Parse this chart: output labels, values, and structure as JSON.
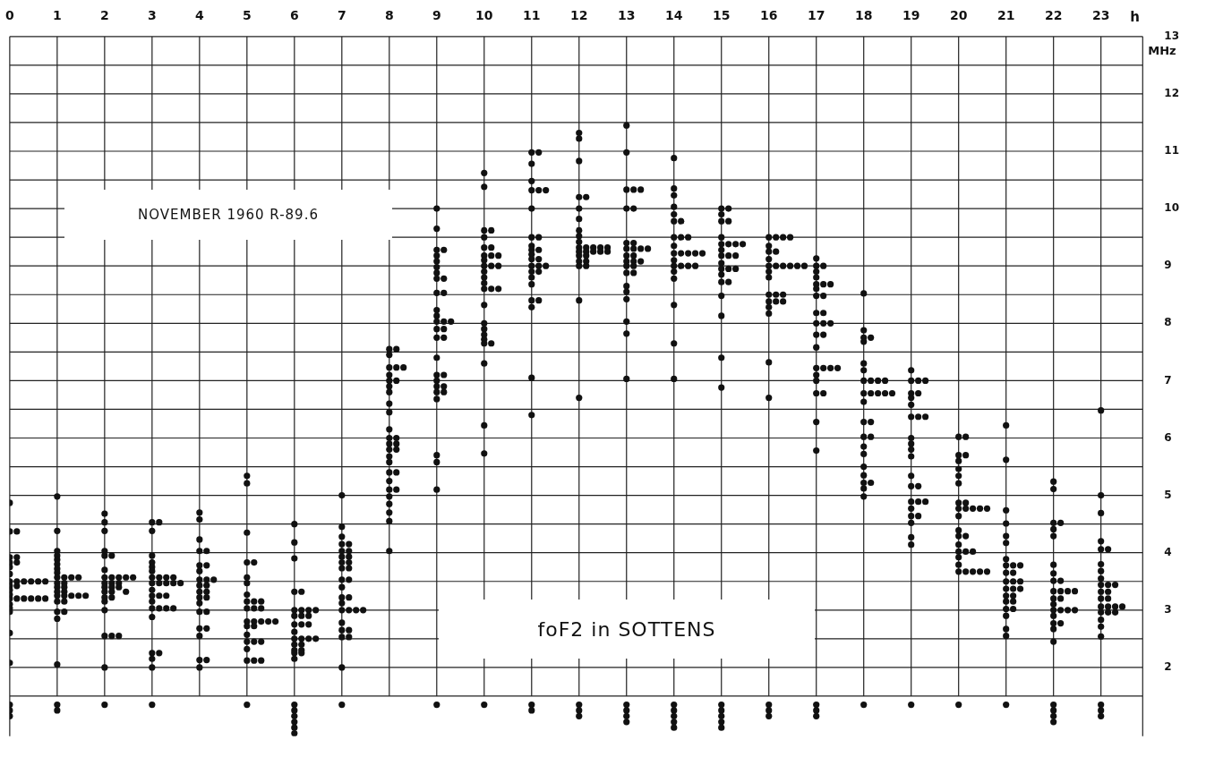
{
  "chart_data": {
    "type": "scatter",
    "title": "foF2 in SOTTENS",
    "subtitle": "NOVEMBER 1960 R-89.6",
    "xlabel": "h",
    "ylabel": "MHz",
    "marker": "circle",
    "grid": true,
    "legend": false,
    "xlim": [
      0,
      23.88
    ],
    "xticks": [
      0,
      1,
      2,
      3,
      4,
      5,
      6,
      7,
      8,
      9,
      10,
      11,
      12,
      13,
      14,
      15,
      16,
      17,
      18,
      19,
      20,
      21,
      22,
      23
    ],
    "ylim": [
      0.8,
      13
    ],
    "yticks": [
      {
        "value": 1.5,
        "label": null
      },
      2,
      {
        "value": 2.5,
        "label": null
      },
      3,
      {
        "value": 3.5,
        "label": null
      },
      4,
      {
        "value": 4.5,
        "label": null
      },
      5,
      {
        "value": 5.5,
        "label": null
      },
      6,
      {
        "value": 6.5,
        "label": null
      },
      7,
      {
        "value": 7.5,
        "label": null
      },
      8,
      {
        "value": 8.5,
        "label": null
      },
      9,
      {
        "value": 9.5,
        "label": null
      },
      10,
      {
        "value": 10.5,
        "label": null
      },
      11,
      {
        "value": 11.5,
        "label": null
      },
      12,
      {
        "value": 12.5,
        "label": null
      },
      13
    ],
    "series": [
      {
        "color": "#111111",
        "x": [
          0,
          0,
          0.15,
          0,
          0.15,
          0,
          0.15,
          0,
          0,
          0,
          0.15,
          0.3,
          0.45,
          0.6,
          0.75,
          0,
          0.15,
          0,
          0,
          0,
          0.15,
          0.3,
          0.45,
          0.6,
          0.75,
          0,
          0,
          0,
          0,
          0
        ],
        "values": [
          4.87,
          4.37,
          4.37,
          3.92,
          3.92,
          3.83,
          3.83,
          3.75,
          3.63,
          3.5,
          3.5,
          3.5,
          3.5,
          3.5,
          3.5,
          3.42,
          3.42,
          3.35,
          3.27,
          3.2,
          3.2,
          3.2,
          3.2,
          3.2,
          3.2,
          3.1,
          3.03,
          2.97,
          2.6,
          2.08
        ]
      },
      {
        "color": "#111111",
        "x": [
          1,
          1,
          1,
          1,
          1,
          1,
          1,
          1,
          1,
          1.15,
          1.3,
          1.45,
          1,
          1.15,
          1,
          1.15,
          1,
          1.15,
          1,
          1.15,
          1.3,
          1.45,
          1.6,
          1,
          1.15,
          1,
          1.15,
          1,
          1
        ],
        "values": [
          4.98,
          4.38,
          4.03,
          3.95,
          3.88,
          3.8,
          3.72,
          3.65,
          3.57,
          3.57,
          3.57,
          3.57,
          3.47,
          3.47,
          3.4,
          3.4,
          3.32,
          3.32,
          3.25,
          3.25,
          3.25,
          3.25,
          3.25,
          3.15,
          3.15,
          2.97,
          2.97,
          2.85,
          2.05
        ]
      },
      {
        "color": "#111111",
        "x": [
          2,
          2,
          2,
          2,
          2,
          2.15,
          2,
          2,
          2.15,
          2.3,
          2.45,
          2.6,
          2,
          2.15,
          2.3,
          2,
          2.15,
          2.3,
          2,
          2.15,
          2.45,
          2,
          2.15,
          2,
          2,
          2,
          2.15,
          2.3,
          2
        ],
        "values": [
          4.68,
          4.53,
          4.38,
          4.03,
          3.95,
          3.95,
          3.7,
          3.57,
          3.57,
          3.57,
          3.57,
          3.57,
          3.47,
          3.47,
          3.47,
          3.4,
          3.4,
          3.4,
          3.32,
          3.32,
          3.32,
          3.22,
          3.22,
          3.15,
          3.0,
          2.55,
          2.55,
          2.55,
          2.0
        ]
      },
      {
        "color": "#111111",
        "x": [
          3,
          3.15,
          3,
          3,
          3,
          3,
          3,
          3,
          3.15,
          3.3,
          3.45,
          3,
          3.15,
          3.3,
          3.45,
          3.6,
          3,
          3,
          3.15,
          3.3,
          3,
          3,
          3.15,
          3.3,
          3.45,
          3,
          3,
          3.15,
          3,
          3
        ],
        "values": [
          4.53,
          4.53,
          4.38,
          3.95,
          3.83,
          3.75,
          3.68,
          3.57,
          3.57,
          3.57,
          3.57,
          3.47,
          3.47,
          3.47,
          3.47,
          3.47,
          3.35,
          3.25,
          3.25,
          3.25,
          3.15,
          3.03,
          3.03,
          3.03,
          3.03,
          2.88,
          2.25,
          2.25,
          2.15,
          2.0
        ]
      },
      {
        "color": "#111111",
        "x": [
          4,
          4,
          4,
          4,
          4.15,
          4,
          4.15,
          4,
          4,
          4.15,
          4.3,
          4,
          4.15,
          4,
          4.15,
          4,
          4.15,
          4,
          4,
          4.15,
          4,
          4.15,
          4,
          4,
          4.15,
          4
        ],
        "values": [
          4.7,
          4.58,
          4.23,
          4.03,
          4.03,
          3.78,
          3.78,
          3.68,
          3.53,
          3.53,
          3.53,
          3.43,
          3.43,
          3.32,
          3.32,
          3.22,
          3.22,
          3.12,
          2.97,
          2.97,
          2.68,
          2.68,
          2.55,
          2.13,
          2.13,
          2.0
        ]
      },
      {
        "color": "#111111",
        "x": [
          5,
          5,
          5,
          5,
          5.15,
          5,
          5,
          5,
          5,
          5.15,
          5.3,
          5,
          5.15,
          5.3,
          5,
          5.15,
          5.3,
          5.45,
          5.6,
          5,
          5.15,
          5,
          5,
          5.15,
          5.3,
          5,
          5,
          5.15,
          5.3
        ],
        "values": [
          5.34,
          5.21,
          4.35,
          3.83,
          3.83,
          3.57,
          3.47,
          3.27,
          3.15,
          3.15,
          3.15,
          3.03,
          3.03,
          3.03,
          2.8,
          2.8,
          2.8,
          2.8,
          2.8,
          2.72,
          2.72,
          2.57,
          2.45,
          2.45,
          2.45,
          2.32,
          2.12,
          2.12,
          2.12
        ]
      },
      {
        "color": "#111111",
        "x": [
          6,
          6,
          6,
          6,
          6.15,
          6,
          6.15,
          6.3,
          6.45,
          6,
          6.15,
          6.3,
          6,
          6.15,
          6.3,
          6,
          6,
          6.15,
          6.3,
          6.45,
          6,
          6.15,
          6,
          6.15,
          6,
          6.15,
          6
        ],
        "values": [
          4.5,
          4.18,
          3.9,
          3.32,
          3.32,
          3.0,
          3.0,
          3.0,
          3.0,
          2.9,
          2.9,
          2.9,
          2.75,
          2.75,
          2.75,
          2.62,
          2.5,
          2.5,
          2.5,
          2.5,
          2.4,
          2.4,
          2.3,
          2.3,
          2.25,
          2.25,
          2.15
        ]
      },
      {
        "color": "#111111",
        "x": [
          7,
          7,
          7,
          7,
          7.15,
          7,
          7.15,
          7,
          7.15,
          7,
          7.15,
          7,
          7.15,
          7,
          7.15,
          7,
          7,
          7.15,
          7,
          7,
          7.15,
          7.3,
          7.45,
          7,
          7,
          7.15,
          7,
          7.15,
          7
        ],
        "values": [
          5.0,
          4.45,
          4.28,
          4.15,
          4.15,
          4.03,
          4.03,
          3.93,
          3.93,
          3.83,
          3.83,
          3.73,
          3.73,
          3.53,
          3.53,
          3.4,
          3.22,
          3.22,
          3.12,
          3.0,
          3.0,
          3.0,
          3.0,
          2.78,
          2.65,
          2.65,
          2.53,
          2.53,
          2.0
        ]
      },
      {
        "color": "#111111",
        "x": [
          8,
          8.15,
          8,
          8,
          8.15,
          8.3,
          8,
          8,
          8.15,
          8,
          8,
          8,
          8,
          8,
          8,
          8.15,
          8,
          8.15,
          8,
          8.15,
          8,
          8,
          8,
          8.15,
          8,
          8,
          8.15,
          8,
          8,
          8,
          8,
          8
        ],
        "values": [
          7.55,
          7.55,
          7.45,
          7.23,
          7.23,
          7.23,
          7.1,
          7.0,
          7.0,
          6.9,
          6.8,
          6.6,
          6.45,
          6.15,
          6.0,
          6.0,
          5.9,
          5.9,
          5.8,
          5.8,
          5.68,
          5.58,
          5.4,
          5.4,
          5.25,
          5.1,
          5.1,
          4.98,
          4.85,
          4.7,
          4.55,
          4.03
        ]
      },
      {
        "color": "#111111",
        "x": [
          9,
          9,
          9,
          9.15,
          9,
          9,
          9,
          9,
          9,
          9.15,
          9,
          9.15,
          9,
          9,
          9,
          9.15,
          9.3,
          9,
          9.15,
          9,
          9.15,
          9,
          9,
          9.15,
          9,
          9,
          9.15,
          9,
          9.15,
          9,
          9,
          9,
          9
        ],
        "values": [
          10.0,
          9.65,
          9.28,
          9.28,
          9.18,
          9.08,
          8.98,
          8.88,
          8.78,
          8.78,
          8.53,
          8.53,
          8.23,
          8.13,
          8.03,
          8.03,
          8.03,
          7.9,
          7.9,
          7.75,
          7.75,
          7.4,
          7.1,
          7.1,
          7.0,
          6.9,
          6.9,
          6.8,
          6.8,
          6.68,
          5.7,
          5.58,
          5.1
        ]
      },
      {
        "color": "#111111",
        "x": [
          10,
          10,
          10,
          10.15,
          10,
          10,
          10.15,
          10,
          10.15,
          10.3,
          10,
          10,
          10.15,
          10.3,
          10,
          10,
          10,
          10,
          10.15,
          10.3,
          10,
          10,
          10,
          10,
          10,
          10,
          10.15,
          10,
          10,
          10
        ],
        "values": [
          10.62,
          10.38,
          9.62,
          9.62,
          9.5,
          9.32,
          9.32,
          9.18,
          9.18,
          9.18,
          9.1,
          9.0,
          9.0,
          9.0,
          8.9,
          8.8,
          8.7,
          8.6,
          8.6,
          8.6,
          8.32,
          8.0,
          7.9,
          7.8,
          7.72,
          7.65,
          7.65,
          7.3,
          6.22,
          5.73
        ]
      },
      {
        "color": "#111111",
        "x": [
          11,
          11.15,
          11,
          11,
          11,
          11.15,
          11.3,
          11,
          11,
          11.15,
          11,
          11,
          11.15,
          11,
          11,
          11.15,
          11,
          11.15,
          11.3,
          11,
          11.15,
          11,
          11,
          11,
          11.15,
          11,
          11,
          11
        ],
        "values": [
          10.98,
          10.98,
          10.78,
          10.48,
          10.32,
          10.32,
          10.32,
          10.0,
          9.5,
          9.5,
          9.35,
          9.28,
          9.28,
          9.2,
          9.12,
          9.12,
          9.0,
          9.0,
          9.0,
          8.9,
          8.9,
          8.8,
          8.68,
          8.4,
          8.4,
          8.28,
          7.05,
          6.4
        ]
      },
      {
        "color": "#111111",
        "x": [
          12,
          12,
          12,
          12,
          12.15,
          12,
          12,
          12,
          12,
          12,
          12,
          12.15,
          12.3,
          12.45,
          12.6,
          12,
          12.15,
          12.3,
          12.45,
          12.6,
          12,
          12.15,
          12,
          12.15,
          12,
          12.15,
          12,
          12
        ],
        "values": [
          11.32,
          11.22,
          10.83,
          10.2,
          10.2,
          10.0,
          9.82,
          9.62,
          9.52,
          9.42,
          9.32,
          9.32,
          9.32,
          9.32,
          9.32,
          9.25,
          9.25,
          9.25,
          9.25,
          9.25,
          9.18,
          9.18,
          9.08,
          9.08,
          9.0,
          9.0,
          8.4,
          6.7
        ]
      },
      {
        "color": "#111111",
        "x": [
          13,
          13,
          13,
          13.15,
          13.3,
          13,
          13.15,
          13,
          13.15,
          13,
          13.15,
          13.3,
          13.45,
          13,
          13.15,
          13,
          13.15,
          13.3,
          13,
          13.15,
          13,
          13.15,
          13,
          13,
          13,
          13,
          13,
          13
        ],
        "values": [
          11.45,
          10.98,
          10.33,
          10.33,
          10.33,
          10.0,
          10.0,
          9.4,
          9.4,
          9.3,
          9.3,
          9.3,
          9.3,
          9.18,
          9.18,
          9.08,
          9.08,
          9.08,
          9.0,
          9.0,
          8.88,
          8.88,
          8.65,
          8.55,
          8.42,
          8.03,
          7.82,
          7.03
        ]
      },
      {
        "color": "#111111",
        "x": [
          14,
          14,
          14,
          14,
          14,
          14,
          14.15,
          14,
          14.15,
          14.3,
          14,
          14,
          14.15,
          14.3,
          14.45,
          14.6,
          14,
          14,
          14.15,
          14.3,
          14.45,
          14,
          14,
          14,
          14,
          14
        ],
        "values": [
          10.88,
          10.35,
          10.23,
          10.03,
          9.9,
          9.78,
          9.78,
          9.5,
          9.5,
          9.5,
          9.35,
          9.22,
          9.22,
          9.22,
          9.22,
          9.22,
          9.1,
          9.0,
          9.0,
          9.0,
          9.0,
          8.9,
          8.78,
          8.32,
          7.65,
          7.03
        ]
      },
      {
        "color": "#111111",
        "x": [
          15,
          15.15,
          15,
          15,
          15.15,
          15,
          15,
          15.15,
          15.3,
          15.45,
          15,
          15,
          15.15,
          15.3,
          15,
          15,
          15.15,
          15.3,
          15,
          15,
          15.15,
          15,
          15,
          15,
          15
        ],
        "values": [
          10.0,
          10.0,
          9.9,
          9.78,
          9.78,
          9.5,
          9.38,
          9.38,
          9.38,
          9.38,
          9.28,
          9.18,
          9.18,
          9.18,
          9.05,
          8.95,
          8.95,
          8.95,
          8.85,
          8.72,
          8.72,
          8.48,
          8.13,
          7.4,
          6.88
        ]
      },
      {
        "color": "#111111",
        "x": [
          16,
          16.15,
          16.3,
          16.45,
          16,
          16,
          16.15,
          16,
          16,
          16.15,
          16.3,
          16.45,
          16.6,
          16.75,
          16,
          16,
          16,
          16.15,
          16.3,
          16,
          16.15,
          16.3,
          16,
          16,
          16,
          16
        ],
        "values": [
          9.5,
          9.5,
          9.5,
          9.5,
          9.35,
          9.25,
          9.25,
          9.12,
          9.0,
          9.0,
          9.0,
          9.0,
          9.0,
          9.0,
          8.9,
          8.8,
          8.5,
          8.5,
          8.5,
          8.38,
          8.38,
          8.38,
          8.28,
          8.17,
          7.32,
          6.7
        ]
      },
      {
        "color": "#111111",
        "x": [
          17,
          17,
          17.15,
          17,
          17,
          17,
          17.15,
          17.3,
          17,
          17,
          17.15,
          17,
          17.15,
          17,
          17.15,
          17.3,
          17,
          17.15,
          17,
          17,
          17.15,
          17.3,
          17.45,
          17,
          17,
          17,
          17.15,
          17,
          17
        ],
        "values": [
          9.13,
          9.0,
          9.0,
          8.9,
          8.8,
          8.68,
          8.68,
          8.68,
          8.6,
          8.48,
          8.48,
          8.18,
          8.18,
          8.0,
          8.0,
          8.0,
          7.8,
          7.8,
          7.58,
          7.22,
          7.22,
          7.22,
          7.22,
          7.1,
          7.0,
          6.78,
          6.78,
          6.28,
          5.78
        ]
      },
      {
        "color": "#111111",
        "x": [
          18,
          18,
          18,
          18.15,
          18,
          18,
          18,
          18,
          18.15,
          18.3,
          18.45,
          18,
          18.15,
          18.3,
          18.45,
          18.6,
          18,
          18,
          18.15,
          18,
          18.15,
          18,
          18,
          18,
          18,
          18,
          18.15,
          18,
          18
        ],
        "values": [
          8.52,
          7.88,
          7.75,
          7.75,
          7.68,
          7.3,
          7.18,
          7.0,
          7.0,
          7.0,
          7.0,
          6.78,
          6.78,
          6.78,
          6.78,
          6.78,
          6.63,
          6.28,
          6.28,
          6.02,
          6.02,
          5.85,
          5.72,
          5.5,
          5.35,
          5.22,
          5.22,
          5.12,
          4.98
        ]
      },
      {
        "color": "#111111",
        "x": [
          19,
          19,
          19.15,
          19.3,
          19,
          19.15,
          19,
          19,
          19,
          19.15,
          19.3,
          19,
          19,
          19,
          19,
          19,
          19,
          19.15,
          19,
          19.15,
          19.3,
          19,
          19,
          19.15,
          19,
          19,
          19
        ],
        "values": [
          7.18,
          7.0,
          7.0,
          7.0,
          6.78,
          6.78,
          6.7,
          6.58,
          6.37,
          6.37,
          6.37,
          6.0,
          5.9,
          5.8,
          5.68,
          5.34,
          5.16,
          5.16,
          4.89,
          4.89,
          4.89,
          4.77,
          4.64,
          4.64,
          4.52,
          4.27,
          4.14
        ]
      },
      {
        "color": "#111111",
        "x": [
          20,
          20.15,
          20,
          20.15,
          20,
          20,
          20,
          20,
          20,
          20.15,
          20,
          20.15,
          20.3,
          20.45,
          20.6,
          20,
          20,
          20,
          20.15,
          20,
          20,
          20.15,
          20.3,
          20,
          20,
          20,
          20.15,
          20.3,
          20.45,
          20.6
        ],
        "values": [
          6.02,
          6.02,
          5.7,
          5.7,
          5.6,
          5.46,
          5.34,
          5.21,
          4.87,
          4.87,
          4.77,
          4.77,
          4.77,
          4.77,
          4.77,
          4.64,
          4.39,
          4.29,
          4.29,
          4.14,
          4.02,
          4.02,
          4.02,
          3.92,
          3.79,
          3.67,
          3.67,
          3.67,
          3.67,
          3.67
        ]
      },
      {
        "color": "#111111",
        "x": [
          21,
          21,
          21,
          21,
          21,
          21,
          21,
          21,
          21.15,
          21.3,
          21,
          21.15,
          21,
          21.15,
          21.3,
          21,
          21.15,
          21.3,
          21,
          21.15,
          21,
          21.15,
          21,
          21.15,
          21,
          21,
          21
        ],
        "values": [
          6.22,
          5.62,
          4.74,
          4.51,
          4.29,
          4.17,
          3.89,
          3.78,
          3.78,
          3.78,
          3.65,
          3.65,
          3.5,
          3.5,
          3.5,
          3.37,
          3.37,
          3.37,
          3.25,
          3.25,
          3.15,
          3.15,
          3.02,
          3.02,
          2.9,
          2.67,
          2.55
        ]
      },
      {
        "color": "#111111",
        "x": [
          22,
          22,
          22,
          22.15,
          22,
          22,
          22,
          22,
          22,
          22.15,
          22,
          22.15,
          22.3,
          22.45,
          22,
          22.15,
          22,
          22,
          22.15,
          22.3,
          22.45,
          22,
          22,
          22.15,
          22,
          22
        ],
        "values": [
          5.24,
          5.11,
          4.52,
          4.52,
          4.41,
          4.29,
          3.79,
          3.64,
          3.51,
          3.51,
          3.33,
          3.33,
          3.33,
          3.33,
          3.2,
          3.2,
          3.1,
          3.0,
          3.0,
          3.0,
          3.0,
          2.9,
          2.77,
          2.77,
          2.67,
          2.45
        ]
      },
      {
        "color": "#111111",
        "x": [
          23,
          23,
          23,
          23,
          23,
          23.15,
          23,
          23,
          23,
          23,
          23.15,
          23.3,
          23,
          23.15,
          23,
          23.15,
          23,
          23.15,
          23.3,
          23.45,
          23,
          23.15,
          23.3,
          23,
          23,
          23
        ],
        "values": [
          6.48,
          5.0,
          4.69,
          4.2,
          4.06,
          4.06,
          3.8,
          3.68,
          3.55,
          3.44,
          3.44,
          3.44,
          3.32,
          3.32,
          3.2,
          3.2,
          3.06,
          3.06,
          3.06,
          3.06,
          2.96,
          2.96,
          2.96,
          2.83,
          2.71,
          2.54
        ]
      },
      {
        "color": "#111111",
        "x": [
          0,
          0,
          0,
          1,
          1,
          2,
          3,
          5,
          6,
          6,
          6,
          6,
          6,
          6,
          7,
          9,
          10,
          11,
          11,
          12,
          12,
          12,
          13,
          13,
          13,
          13,
          14,
          14,
          14,
          14,
          14,
          15,
          15,
          15,
          15,
          15,
          16,
          16,
          16,
          17,
          17,
          17,
          18,
          19,
          20,
          21,
          22,
          22,
          22,
          22,
          23,
          23,
          23
        ],
        "values": [
          1.35,
          1.25,
          1.15,
          1.35,
          1.25,
          1.35,
          1.35,
          1.35,
          1.35,
          1.25,
          1.15,
          1.05,
          0.95,
          0.85,
          1.35,
          1.35,
          1.35,
          1.35,
          1.25,
          1.35,
          1.25,
          1.15,
          1.35,
          1.25,
          1.15,
          1.05,
          1.35,
          1.25,
          1.15,
          1.05,
          0.95,
          1.35,
          1.25,
          1.15,
          1.05,
          0.95,
          1.35,
          1.25,
          1.15,
          1.35,
          1.25,
          1.15,
          1.35,
          1.35,
          1.35,
          1.35,
          1.35,
          1.25,
          1.15,
          1.05,
          1.35,
          1.25,
          1.15
        ]
      }
    ]
  }
}
